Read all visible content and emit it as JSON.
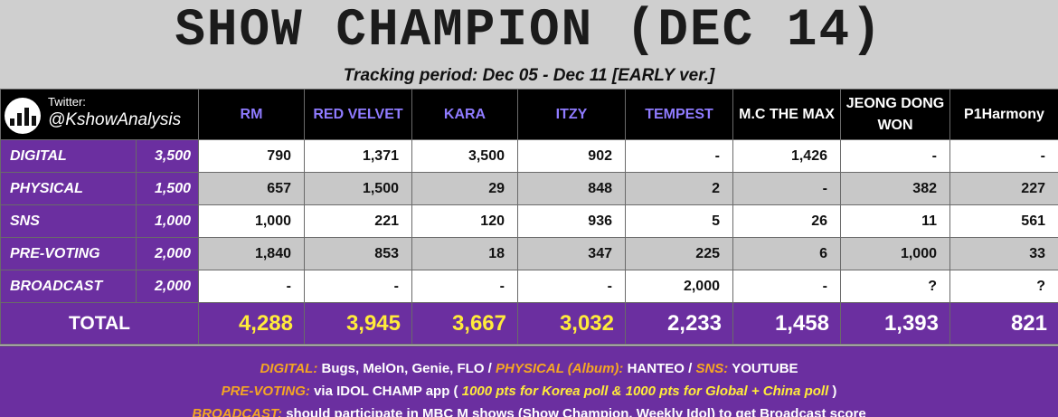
{
  "title": "SHOW CHAMPION (DEC 14)",
  "subtitle": "Tracking period: Dec 05 - Dec 11 [EARLY ver.]",
  "twitter": {
    "label": "Twitter:",
    "handle": "@KshowAnalysis"
  },
  "artists": [
    "RM",
    "RED VELVET",
    "KARA",
    "ITZY",
    "TEMPEST",
    "M.C THE MAX",
    "JEONG DONG WON",
    "P1Harmony"
  ],
  "rows": [
    {
      "category": "DIGITAL",
      "points": "3,500",
      "values": [
        "790",
        "1,371",
        "3,500",
        "902",
        "-",
        "1,426",
        "-",
        "-"
      ]
    },
    {
      "category": "PHYSICAL",
      "points": "1,500",
      "values": [
        "657",
        "1,500",
        "29",
        "848",
        "2",
        "-",
        "382",
        "227"
      ]
    },
    {
      "category": "SNS",
      "points": "1,000",
      "values": [
        "1,000",
        "221",
        "120",
        "936",
        "5",
        "26",
        "11",
        "561"
      ]
    },
    {
      "category": "PRE-VOTING",
      "points": "2,000",
      "values": [
        "1,840",
        "853",
        "18",
        "347",
        "225",
        "6",
        "1,000",
        "33"
      ]
    },
    {
      "category": "BROADCAST",
      "points": "2,000",
      "values": [
        "-",
        "-",
        "-",
        "-",
        "2,000",
        "-",
        "?",
        "?"
      ]
    }
  ],
  "total": {
    "label": "TOTAL",
    "values": [
      "4,288",
      "3,945",
      "3,667",
      "3,032",
      "2,233",
      "1,458",
      "1,393",
      "821"
    ]
  },
  "footer": {
    "line1": {
      "digital_label": "DIGITAL:",
      "digital_text": "Bugs, MelOn, Genie, FLO /",
      "physical_label": "PHYSICAL (Album):",
      "physical_text": "HANTEO /",
      "sns_label": "SNS:",
      "sns_text": "YOUTUBE"
    },
    "line2": {
      "prevoting_label": "PRE-VOTING:",
      "text_a": "via IDOL CHAMP app (",
      "highlight": "1000 pts for Korea poll & 1000 pts for Global + China poll",
      "text_b": ")"
    },
    "line3": {
      "broadcast_label": "BROADCAST:",
      "text": "should participate in MBC M shows (Show Champion, Weekly Idol) to get Broadcast score"
    }
  },
  "colors": {
    "purple": "#6b2fa0",
    "yellow": "#ffeb3b",
    "orange": "#f5a623",
    "artist_purple": "#8f7bff"
  }
}
